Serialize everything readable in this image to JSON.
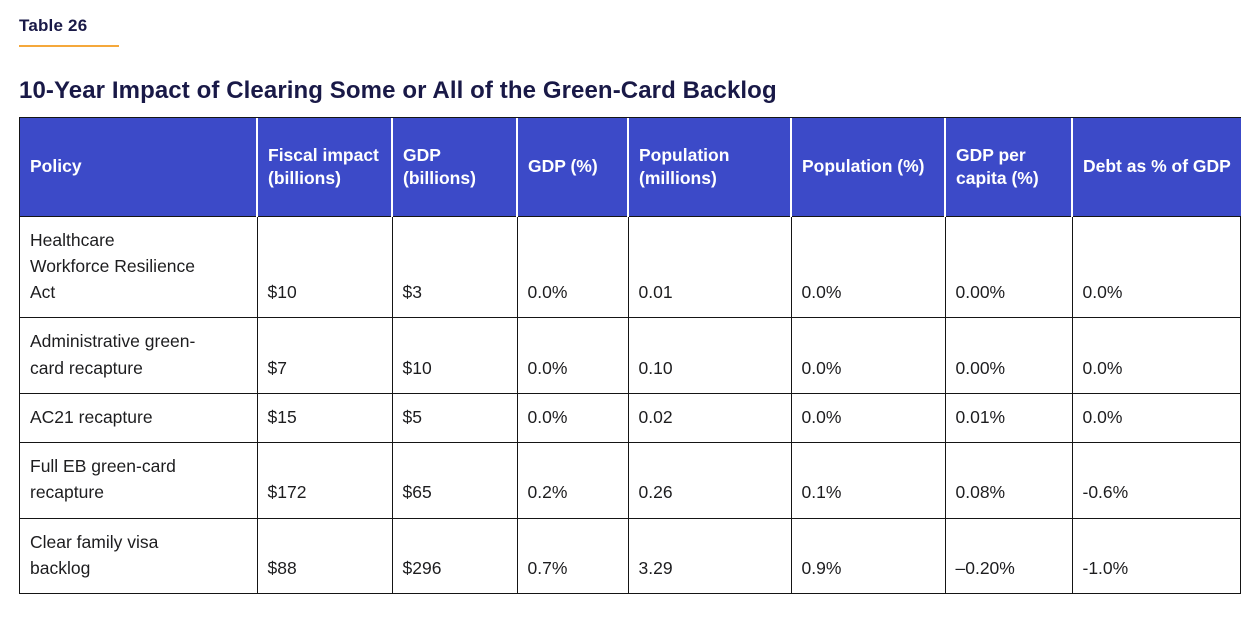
{
  "page": {
    "table_label": "Table 26",
    "title": "10-Year Impact of Clearing Some or All of the Green-Card Backlog"
  },
  "colors": {
    "header_bg": "#3C4AC8",
    "accent_rule": "#F5A83B",
    "heading_text": "#191947",
    "body_text": "#1D1D1F",
    "border": "#151515"
  },
  "chart_data": {
    "type": "table",
    "columns": [
      "Policy",
      "Fiscal impact (billions)",
      "GDP (billions)",
      "GDP (%)",
      "Population (millions)",
      "Population (%)",
      "GDP per capita (%)",
      "Debt as % of GDP"
    ],
    "rows": [
      [
        "Healthcare Workforce Resilience Act",
        "$10",
        "$3",
        "0.0%",
        "0.01",
        "0.0%",
        "0.00%",
        "0.0%"
      ],
      [
        "Administrative green-card recapture",
        "$7",
        "$10",
        "0.0%",
        "0.10",
        "0.0%",
        "0.00%",
        "0.0%"
      ],
      [
        "AC21 recapture",
        "$15",
        "$5",
        "0.0%",
        "0.02",
        "0.0%",
        "0.01%",
        "0.0%"
      ],
      [
        "Full EB green-card recapture",
        "$172",
        "$65",
        "0.2%",
        "0.26",
        "0.1%",
        "0.08%",
        "-0.6%"
      ],
      [
        "Clear family visa backlog",
        "$88",
        "$296",
        "0.7%",
        "3.29",
        "0.9%",
        "–0.20%",
        "-1.0%"
      ]
    ]
  }
}
